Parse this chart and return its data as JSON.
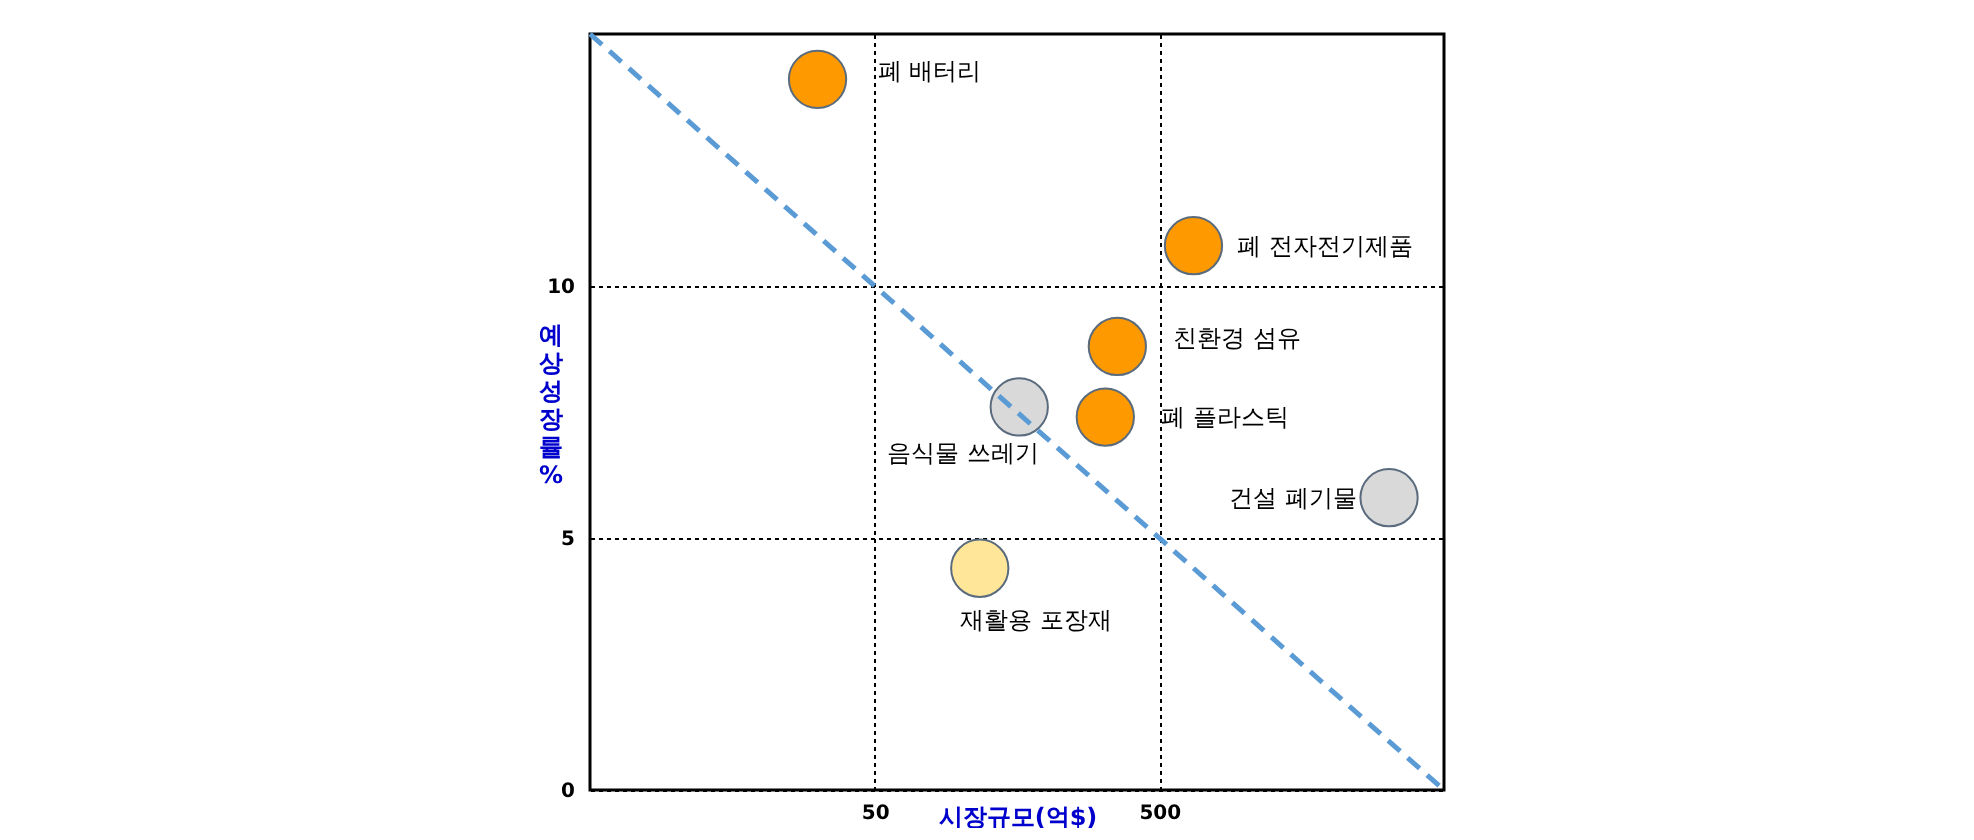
{
  "chart_data": {
    "type": "scatter",
    "xlabel": "시장규모(억$)",
    "ylabel": "예상성장률%",
    "log": "x",
    "xlim": [
      5,
      5000
    ],
    "xticks": [
      50,
      500
    ],
    "ylim": [
      0,
      15
    ],
    "yticks": [
      0,
      5,
      10
    ],
    "grid": true,
    "series": [
      {
        "marker": "circle",
        "x": [
          31.5,
          659,
          356,
          323,
          161,
          3206,
          117
        ],
        "values": [
          14.1,
          10.8,
          8.8,
          7.4,
          7.6,
          5.8,
          4.4
        ],
        "colors": [
          "#ff9900",
          "#ff9900",
          "#ff9900",
          "#ff9900",
          "#d9d9d9",
          "#d9d9d9",
          "#ffe699"
        ]
      },
      {
        "type": "line",
        "x": [
          5,
          5000
        ],
        "values": [
          15,
          0
        ],
        "color": "#5b9bd5",
        "line_style": "dashed"
      }
    ],
    "annotations": [
      {
        "text": "폐 배터리",
        "x": 31.5,
        "y": 14.1
      },
      {
        "text": "폐 전자전기제품",
        "x": 659,
        "y": 10.8
      },
      {
        "text": "친환경 섬유",
        "x": 356,
        "y": 8.8
      },
      {
        "text": "폐 플라스틱",
        "x": 323,
        "y": 7.4
      },
      {
        "text": "음식물 쓰레기",
        "x": 161,
        "y": 7.6
      },
      {
        "text": "건설 폐기물",
        "x": 3206,
        "y": 5.8
      },
      {
        "text": "재활용 포장재",
        "x": 117,
        "y": 4.4
      }
    ]
  }
}
